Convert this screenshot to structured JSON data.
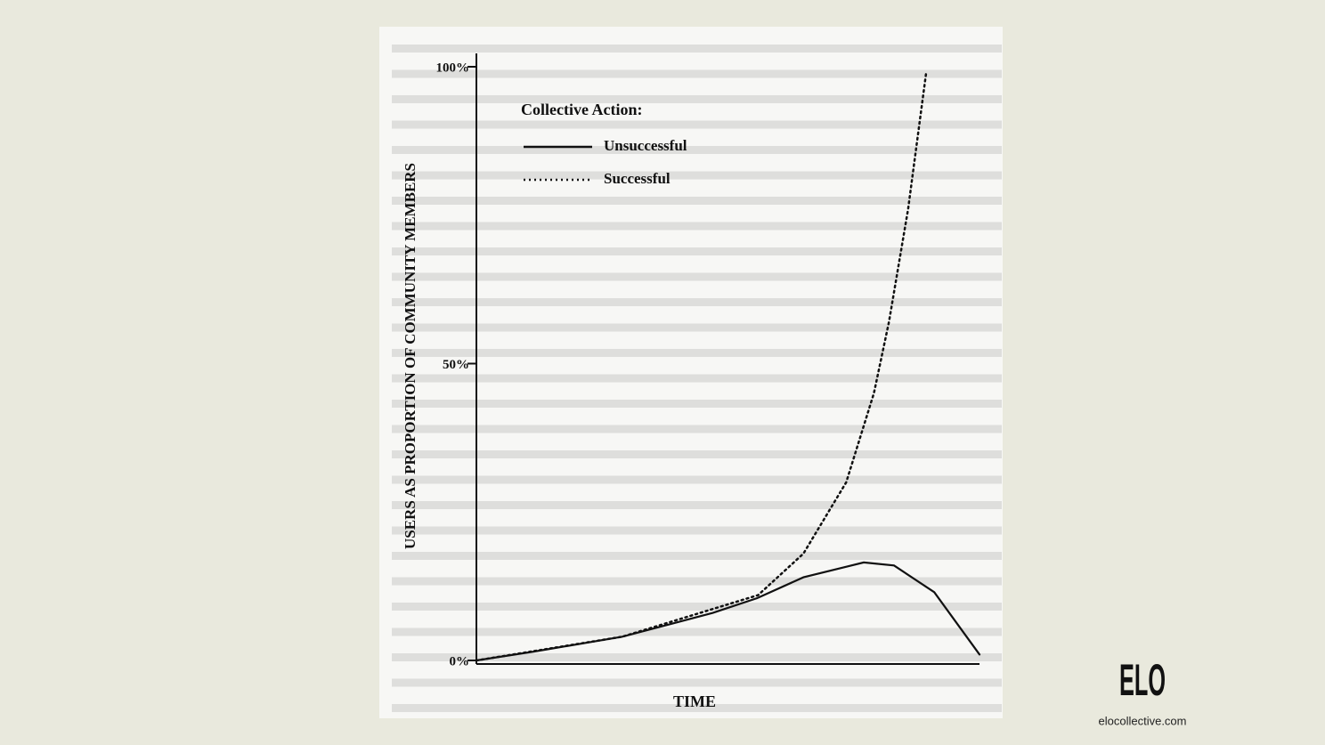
{
  "chart_data": {
    "type": "line",
    "y_label": "USERS AS PROPORTION OF COMMUNITY MEMBERS",
    "x_label": "TIME",
    "legend_title": "Collective Action:",
    "xlim": [
      0,
      100
    ],
    "ylim": [
      0,
      100
    ],
    "yticks": [
      {
        "value": 0,
        "label": "0%"
      },
      {
        "value": 50,
        "label": "50%"
      },
      {
        "value": 100,
        "label": "100%"
      }
    ],
    "series": [
      {
        "name": "Unsuccessful",
        "color": "#111111",
        "dash": "solid",
        "x": [
          0,
          11.5,
          29,
          47,
          55.8,
          65,
          77,
          83,
          91,
          100
        ],
        "values": [
          0,
          1.5,
          4,
          8,
          10.5,
          14,
          16.5,
          16,
          11.5,
          1
        ]
      },
      {
        "name": "Successful",
        "color": "#111111",
        "dash": "dotted",
        "x": [
          0,
          29,
          56,
          65,
          73.5,
          79,
          82,
          85.8,
          89.4
        ],
        "values": [
          0,
          4,
          11,
          18,
          30,
          45,
          57,
          76,
          99
        ]
      }
    ]
  },
  "brand": {
    "logo": "ELO",
    "url": "elocollective.com"
  }
}
